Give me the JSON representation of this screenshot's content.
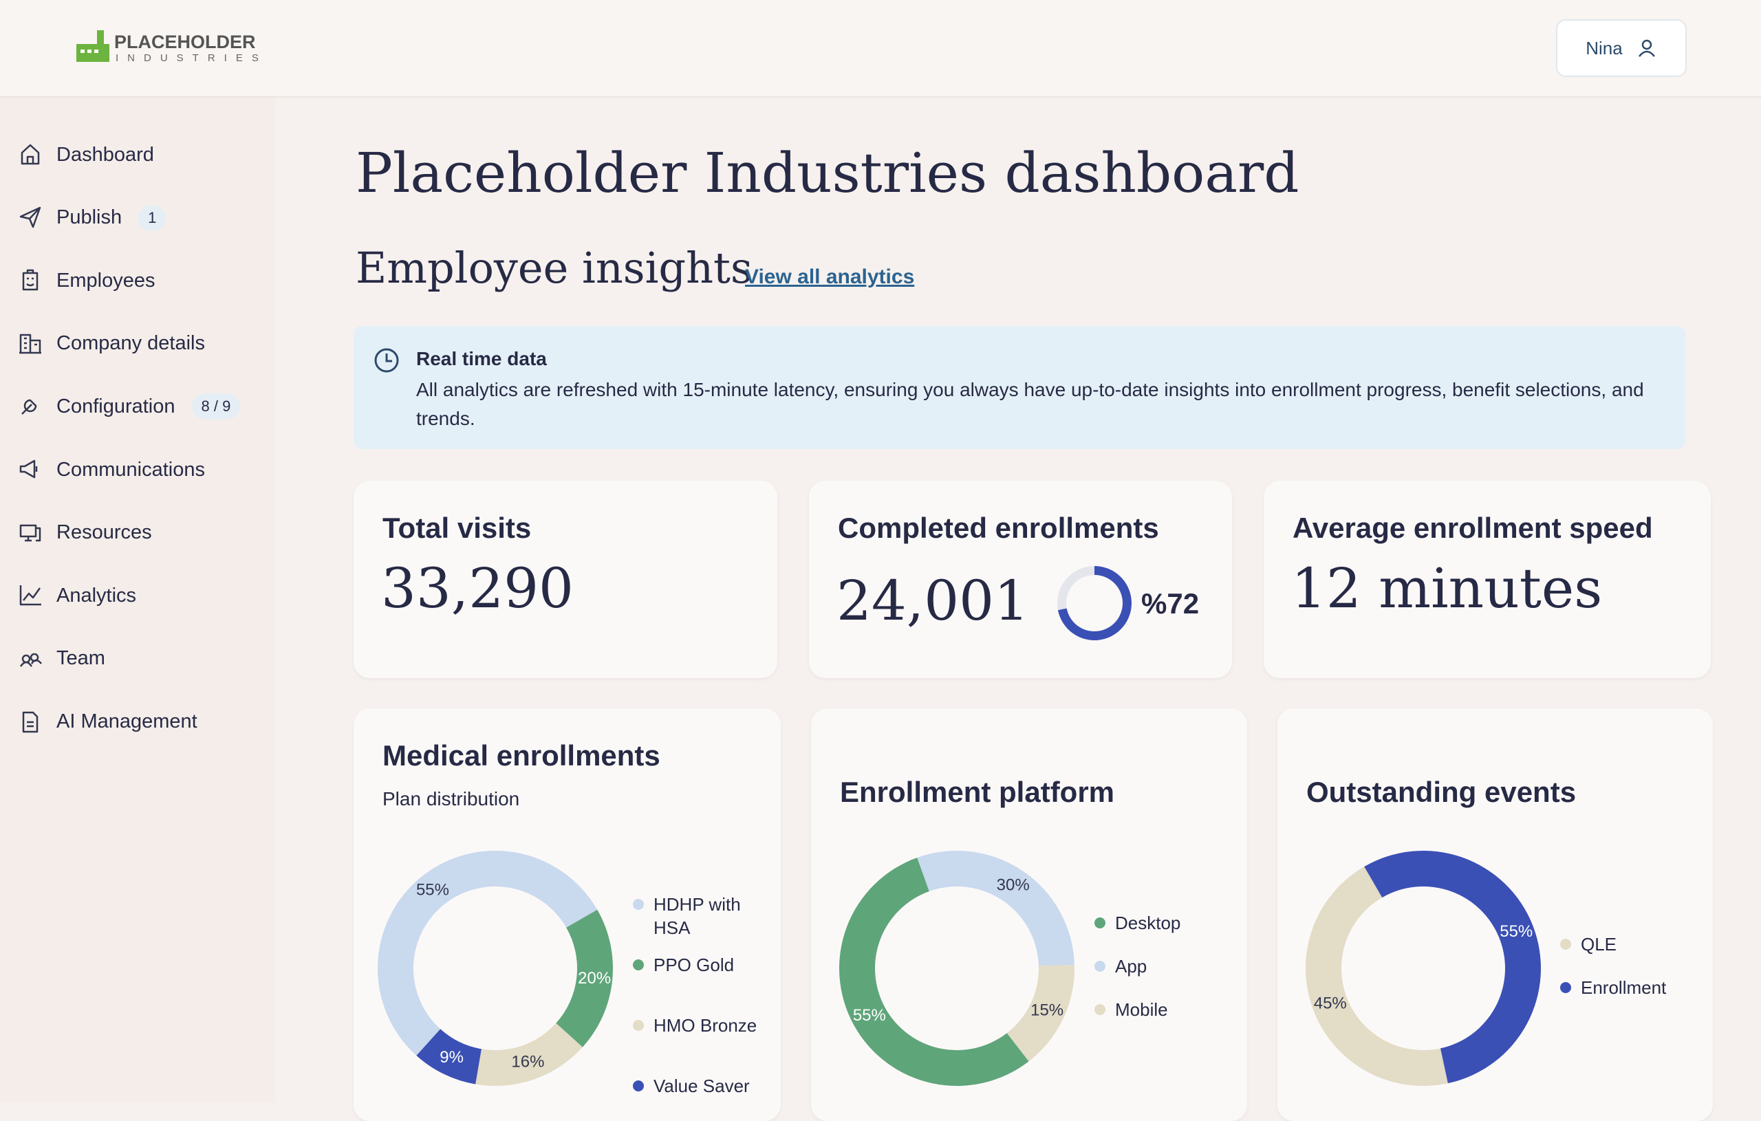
{
  "header": {
    "logo_top": "PLACEHOLDER",
    "logo_bottom": "INDUSTRIES",
    "user": "Nina"
  },
  "nav": {
    "items": [
      {
        "label": "Dashboard"
      },
      {
        "label": "Publish",
        "badge": "1"
      },
      {
        "label": "Employees"
      },
      {
        "label": "Company details"
      },
      {
        "label": "Configuration",
        "badge": "8 / 9"
      },
      {
        "label": "Communications"
      },
      {
        "label": "Resources"
      },
      {
        "label": "Analytics"
      },
      {
        "label": "Team"
      },
      {
        "label": "AI Management"
      }
    ]
  },
  "page": {
    "title": "Placeholder Industries dashboard",
    "section": "Employee insights",
    "link": "View all analytics"
  },
  "notice": {
    "title": "Real time data",
    "text": "All analytics are refreshed with 15-minute latency, ensuring you always have up-to-date insights into enrollment progress, benefit selections, and trends."
  },
  "stats": [
    {
      "title": "Total visits",
      "value": "33,290"
    },
    {
      "title": "Completed enrollments",
      "value": "24,001",
      "percent": 72,
      "percent_label": "%72",
      "color": "#3b50b5"
    },
    {
      "title": "Average enrollment speed",
      "value": "12 minutes"
    }
  ],
  "medical": {
    "type": "pie",
    "title": "Medical enrollments",
    "subtitle": "Plan distribution",
    "categories": [
      "HDHP with HSA",
      "PPO Gold",
      "HMO Bronze",
      "Value Saver"
    ],
    "values": [
      55,
      20,
      16,
      9
    ],
    "value_labels": [
      "55%",
      "20%",
      "16%",
      "9%"
    ],
    "colors": [
      "#c9d9ee",
      "#5fa57a",
      "#e3dcc6",
      "#3b50b5"
    ]
  },
  "platform": {
    "type": "pie",
    "title": "Enrollment platform",
    "categories": [
      "Desktop",
      "App",
      "Mobile"
    ],
    "values": [
      55,
      30,
      15
    ],
    "value_labels": [
      "55%",
      "30%",
      "15%"
    ],
    "colors": [
      "#5fa57a",
      "#c9d9ee",
      "#e3dcc6"
    ]
  },
  "events": {
    "type": "pie",
    "title": "Outstanding events",
    "categories": [
      "QLE",
      "Enrollment"
    ],
    "values": [
      45,
      55
    ],
    "value_labels": [
      "45%",
      "55%"
    ],
    "colors": [
      "#e3dcc6",
      "#3b50b5"
    ]
  }
}
